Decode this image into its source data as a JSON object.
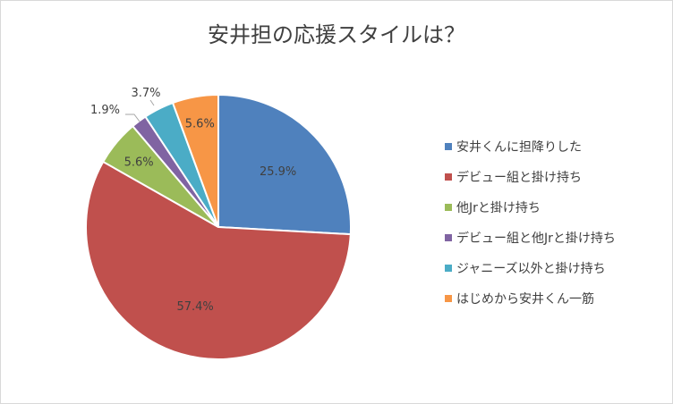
{
  "chart_data": {
    "type": "pie",
    "title": "安井担の応援スタイルは？",
    "legend_position": "right",
    "slices": [
      {
        "label": "安井くんに担降りした",
        "value": 25.9,
        "display": "25.9%",
        "color": "#4f81bd"
      },
      {
        "label": "デビュー組と掛け持ち",
        "value": 57.4,
        "display": "57.4%",
        "color": "#c0504d"
      },
      {
        "label": "他Jrと掛け持ち",
        "value": 5.6,
        "display": "5.6%",
        "color": "#9bbb59"
      },
      {
        "label": "デビュー組と他Jrと掛け持ち",
        "value": 1.9,
        "display": "1.9%",
        "color": "#8064a2"
      },
      {
        "label": "ジャニーズ以外と掛け持ち",
        "value": 3.7,
        "display": "3.7%",
        "color": "#4bacc6"
      },
      {
        "label": "はじめから安井くん一筋",
        "value": 5.6,
        "display": "5.6%",
        "color": "#f79646"
      }
    ]
  }
}
